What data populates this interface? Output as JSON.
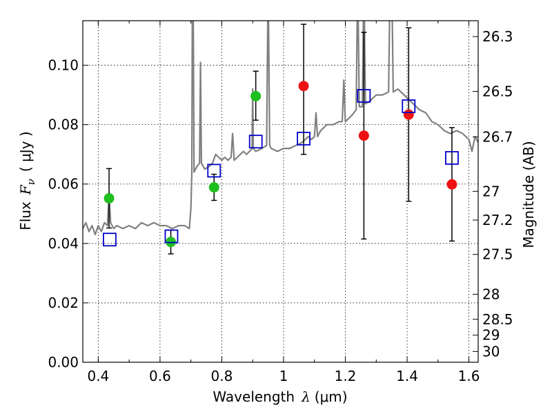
{
  "chart_data": {
    "type": "scatter",
    "xlabel": {
      "prefix": "Wavelength",
      "symbol": "λ",
      "unit": "(μm)"
    },
    "ylabel": {
      "prefix": "Flux",
      "symbol": "F",
      "subscript": "ν",
      "unit": "( μJy )"
    },
    "y2label": "Magnitude (AB)",
    "xlim": [
      0.35,
      1.63
    ],
    "ylim": [
      0.0,
      0.115
    ],
    "grid": true,
    "x_ticks": [
      {
        "value": 0.4,
        "label": "0.4"
      },
      {
        "value": 0.6,
        "label": "0.6"
      },
      {
        "value": 0.8,
        "label": "0.8"
      },
      {
        "value": 1.0,
        "label": "1"
      },
      {
        "value": 1.2,
        "label": "1.2"
      },
      {
        "value": 1.4,
        "label": "1.4"
      },
      {
        "value": 1.6,
        "label": "1.6"
      }
    ],
    "y_ticks": [
      {
        "value": 0.0,
        "label": "0.00"
      },
      {
        "value": 0.02,
        "label": "0.02"
      },
      {
        "value": 0.04,
        "label": "0.04"
      },
      {
        "value": 0.06,
        "label": "0.06"
      },
      {
        "value": 0.08,
        "label": "0.08"
      },
      {
        "value": 0.1,
        "label": "0.10"
      }
    ],
    "mag_ticks": [
      {
        "label": "26.3",
        "mag": 26.3
      },
      {
        "label": "26.5",
        "mag": 26.5
      },
      {
        "label": "26.7",
        "mag": 26.7
      },
      {
        "label": "27",
        "mag": 27.0
      },
      {
        "label": "27.2",
        "mag": 27.2
      },
      {
        "label": "27.5",
        "mag": 27.5
      },
      {
        "label": "28",
        "mag": 28.0
      },
      {
        "label": "28.5",
        "mag": 28.5
      },
      {
        "label": "29",
        "mag": 29.0
      },
      {
        "label": "30",
        "mag": 30.0
      }
    ],
    "colors": {
      "green": "#1fbf1f",
      "red": "#ee1111",
      "blue": "#0000cc",
      "spectrum": "#808080",
      "errorbar": "#000000"
    },
    "series": [
      {
        "marker": "circle",
        "color": "#1fbf1f",
        "points": [
          {
            "x": 0.435,
            "y": 0.0552,
            "yerr_low": 0.0452,
            "yerr_high": 0.0652
          },
          {
            "x": 0.635,
            "y": 0.0405,
            "yerr_low": 0.0365,
            "yerr_high": 0.0445
          },
          {
            "x": 0.775,
            "y": 0.0589,
            "yerr_low": 0.0545,
            "yerr_high": 0.0633
          },
          {
            "x": 0.91,
            "y": 0.0896,
            "yerr_low": 0.0815,
            "yerr_high": 0.098
          }
        ]
      },
      {
        "marker": "circle",
        "color": "#ee1111",
        "points": [
          {
            "x": 1.065,
            "y": 0.093,
            "yerr_low": 0.07,
            "yerr_high": 0.1138
          },
          {
            "x": 1.26,
            "y": 0.0763,
            "yerr_low": 0.0415,
            "yerr_high": 0.1111
          },
          {
            "x": 1.405,
            "y": 0.0834,
            "yerr_low": 0.0542,
            "yerr_high": 0.1126
          },
          {
            "x": 1.545,
            "y": 0.0599,
            "yerr_low": 0.0408,
            "yerr_high": 0.079
          }
        ]
      },
      {
        "marker": "square-open",
        "color": "#0000cc",
        "points": [
          {
            "x": 0.437,
            "y": 0.0413
          },
          {
            "x": 0.637,
            "y": 0.0424
          },
          {
            "x": 0.775,
            "y": 0.0645
          },
          {
            "x": 0.91,
            "y": 0.0743
          },
          {
            "x": 1.065,
            "y": 0.0753
          },
          {
            "x": 1.26,
            "y": 0.0897
          },
          {
            "x": 1.405,
            "y": 0.0862
          },
          {
            "x": 1.545,
            "y": 0.0688
          }
        ]
      }
    ],
    "spectrum": [
      [
        0.35,
        0.045
      ],
      [
        0.36,
        0.047
      ],
      [
        0.37,
        0.044
      ],
      [
        0.38,
        0.046
      ],
      [
        0.39,
        0.043
      ],
      [
        0.4,
        0.046
      ],
      [
        0.41,
        0.044
      ],
      [
        0.42,
        0.047
      ],
      [
        0.43,
        0.046
      ],
      [
        0.435,
        0.057
      ],
      [
        0.44,
        0.047
      ],
      [
        0.45,
        0.045
      ],
      [
        0.46,
        0.046
      ],
      [
        0.48,
        0.045
      ],
      [
        0.5,
        0.046
      ],
      [
        0.52,
        0.045
      ],
      [
        0.54,
        0.047
      ],
      [
        0.56,
        0.046
      ],
      [
        0.58,
        0.047
      ],
      [
        0.6,
        0.046
      ],
      [
        0.62,
        0.046
      ],
      [
        0.64,
        0.045
      ],
      [
        0.66,
        0.046
      ],
      [
        0.68,
        0.046
      ],
      [
        0.695,
        0.045
      ],
      [
        0.7,
        0.052
      ],
      [
        0.703,
        0.064
      ],
      [
        0.705,
        0.13
      ],
      [
        0.707,
        0.13
      ],
      [
        0.71,
        0.064
      ],
      [
        0.72,
        0.066
      ],
      [
        0.728,
        0.067
      ],
      [
        0.731,
        0.101
      ],
      [
        0.734,
        0.067
      ],
      [
        0.745,
        0.065
      ],
      [
        0.76,
        0.066
      ],
      [
        0.77,
        0.067
      ],
      [
        0.78,
        0.07
      ],
      [
        0.79,
        0.069
      ],
      [
        0.8,
        0.068
      ],
      [
        0.81,
        0.069
      ],
      [
        0.82,
        0.068
      ],
      [
        0.83,
        0.069
      ],
      [
        0.835,
        0.077
      ],
      [
        0.84,
        0.068
      ],
      [
        0.85,
        0.069
      ],
      [
        0.86,
        0.07
      ],
      [
        0.87,
        0.071
      ],
      [
        0.88,
        0.07
      ],
      [
        0.89,
        0.071
      ],
      [
        0.898,
        0.072
      ],
      [
        0.9,
        0.092
      ],
      [
        0.902,
        0.072
      ],
      [
        0.91,
        0.071
      ],
      [
        0.93,
        0.072
      ],
      [
        0.945,
        0.073
      ],
      [
        0.95,
        0.13
      ],
      [
        0.955,
        0.073
      ],
      [
        0.96,
        0.072
      ],
      [
        0.98,
        0.071
      ],
      [
        1.0,
        0.072
      ],
      [
        1.02,
        0.072
      ],
      [
        1.04,
        0.073
      ],
      [
        1.06,
        0.074
      ],
      [
        1.08,
        0.076
      ],
      [
        1.09,
        0.075
      ],
      [
        1.1,
        0.076
      ],
      [
        1.105,
        0.084
      ],
      [
        1.11,
        0.076
      ],
      [
        1.12,
        0.078
      ],
      [
        1.14,
        0.08
      ],
      [
        1.16,
        0.08
      ],
      [
        1.18,
        0.081
      ],
      [
        1.19,
        0.081
      ],
      [
        1.195,
        0.095
      ],
      [
        1.2,
        0.081
      ],
      [
        1.22,
        0.083
      ],
      [
        1.235,
        0.085
      ],
      [
        1.24,
        0.13
      ],
      [
        1.245,
        0.086
      ],
      [
        1.255,
        0.086
      ],
      [
        1.26,
        0.13
      ],
      [
        1.265,
        0.087
      ],
      [
        1.28,
        0.088
      ],
      [
        1.3,
        0.09
      ],
      [
        1.32,
        0.09
      ],
      [
        1.34,
        0.091
      ],
      [
        1.345,
        0.13
      ],
      [
        1.35,
        0.13
      ],
      [
        1.355,
        0.091
      ],
      [
        1.37,
        0.092
      ],
      [
        1.38,
        0.091
      ],
      [
        1.39,
        0.09
      ],
      [
        1.4,
        0.089
      ],
      [
        1.42,
        0.087
      ],
      [
        1.44,
        0.085
      ],
      [
        1.46,
        0.084
      ],
      [
        1.48,
        0.081
      ],
      [
        1.5,
        0.08
      ],
      [
        1.52,
        0.078
      ],
      [
        1.54,
        0.077
      ],
      [
        1.56,
        0.078
      ],
      [
        1.58,
        0.077
      ],
      [
        1.6,
        0.075
      ],
      [
        1.61,
        0.071
      ],
      [
        1.62,
        0.076
      ],
      [
        1.63,
        0.074
      ]
    ]
  }
}
